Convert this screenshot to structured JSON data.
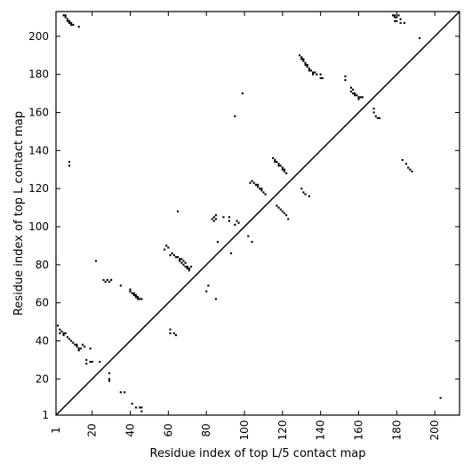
{
  "chart_data": {
    "type": "scatter",
    "title": "",
    "xlabel": "Residue index of top L/5 contact map",
    "ylabel": "Residue index of top L contact map",
    "xlim": [
      1,
      213
    ],
    "ylim": [
      1,
      213
    ],
    "xticks": [
      1,
      20,
      40,
      60,
      80,
      100,
      120,
      140,
      160,
      180,
      200
    ],
    "yticks": [
      1,
      20,
      40,
      60,
      80,
      100,
      120,
      140,
      160,
      180,
      200
    ],
    "xtick_labels": [
      "1",
      "20",
      "40",
      "60",
      "80",
      "100",
      "120",
      "140",
      "160",
      "180",
      "200"
    ],
    "ytick_labels": [
      "1",
      "20",
      "40",
      "60",
      "80",
      "100",
      "120",
      "140",
      "160",
      "180",
      "200"
    ],
    "diagonal": true,
    "marker_color": "#000000",
    "upper_triangle": [
      [
        5,
        211
      ],
      [
        6,
        211
      ],
      [
        6,
        210
      ],
      [
        7,
        209
      ],
      [
        7,
        208
      ],
      [
        8,
        208
      ],
      [
        8,
        207
      ],
      [
        9,
        207
      ],
      [
        9,
        206
      ],
      [
        10,
        206
      ],
      [
        13,
        205
      ],
      [
        8,
        134
      ],
      [
        8,
        132
      ],
      [
        58,
        88
      ],
      [
        59,
        90
      ],
      [
        60,
        89
      ],
      [
        61,
        85
      ],
      [
        62,
        86
      ],
      [
        63,
        85
      ],
      [
        64,
        84
      ],
      [
        65,
        84
      ],
      [
        66,
        83
      ],
      [
        66,
        82
      ],
      [
        67,
        83
      ],
      [
        67,
        81
      ],
      [
        68,
        82
      ],
      [
        68,
        80
      ],
      [
        69,
        81
      ],
      [
        69,
        79
      ],
      [
        70,
        79
      ],
      [
        70,
        78
      ],
      [
        71,
        78
      ],
      [
        71,
        77
      ],
      [
        72,
        79
      ],
      [
        80,
        66
      ],
      [
        81,
        69
      ],
      [
        85,
        62
      ],
      [
        65,
        108
      ],
      [
        83,
        104
      ],
      [
        84,
        105
      ],
      [
        84,
        103
      ],
      [
        85,
        106
      ],
      [
        85,
        104
      ],
      [
        86,
        92
      ],
      [
        89,
        105
      ],
      [
        92,
        103
      ],
      [
        92,
        105
      ],
      [
        93,
        86
      ],
      [
        95,
        101
      ],
      [
        96,
        103
      ],
      [
        97,
        102
      ],
      [
        95,
        158
      ],
      [
        99,
        170
      ],
      [
        102,
        95
      ],
      [
        104,
        92
      ],
      [
        103,
        123
      ],
      [
        104,
        124
      ],
      [
        105,
        123
      ],
      [
        106,
        122
      ],
      [
        107,
        122
      ],
      [
        107,
        121
      ],
      [
        108,
        120
      ],
      [
        109,
        120
      ],
      [
        109,
        119
      ],
      [
        110,
        118
      ],
      [
        111,
        117
      ],
      [
        115,
        136
      ],
      [
        116,
        135
      ],
      [
        116,
        134
      ],
      [
        117,
        134
      ],
      [
        118,
        133
      ],
      [
        118,
        132
      ],
      [
        119,
        132
      ],
      [
        120,
        131
      ],
      [
        120,
        130
      ],
      [
        121,
        130
      ],
      [
        121,
        129
      ],
      [
        122,
        128
      ],
      [
        117,
        111
      ],
      [
        118,
        110
      ],
      [
        119,
        109
      ],
      [
        120,
        108
      ],
      [
        121,
        107
      ],
      [
        122,
        106
      ],
      [
        123,
        104
      ],
      [
        129,
        190
      ],
      [
        130,
        189
      ],
      [
        130,
        188
      ],
      [
        131,
        188
      ],
      [
        131,
        187
      ],
      [
        132,
        186
      ],
      [
        132,
        185
      ],
      [
        133,
        185
      ],
      [
        133,
        184
      ],
      [
        134,
        183
      ],
      [
        134,
        182
      ],
      [
        135,
        182
      ],
      [
        136,
        181
      ],
      [
        136,
        180
      ],
      [
        137,
        181
      ],
      [
        138,
        180
      ],
      [
        140,
        178
      ],
      [
        141,
        178
      ],
      [
        140,
        180
      ],
      [
        130,
        120
      ],
      [
        131,
        118
      ],
      [
        132,
        117
      ],
      [
        134,
        116
      ],
      [
        153,
        179
      ],
      [
        153,
        177
      ],
      [
        156,
        173
      ],
      [
        156,
        171
      ],
      [
        157,
        172
      ],
      [
        157,
        170
      ],
      [
        158,
        170
      ],
      [
        158,
        169
      ],
      [
        159,
        169
      ],
      [
        160,
        168
      ],
      [
        160,
        167
      ],
      [
        161,
        168
      ],
      [
        162,
        168
      ],
      [
        168,
        162
      ],
      [
        168,
        160
      ],
      [
        169,
        158
      ],
      [
        170,
        157
      ],
      [
        171,
        157
      ],
      [
        178,
        211
      ],
      [
        179,
        211
      ],
      [
        179,
        210
      ],
      [
        179,
        208
      ],
      [
        180,
        210
      ],
      [
        180,
        208
      ],
      [
        181,
        211
      ],
      [
        182,
        209
      ],
      [
        182,
        207
      ],
      [
        184,
        207
      ],
      [
        192,
        199
      ],
      [
        183,
        135
      ],
      [
        185,
        133
      ],
      [
        186,
        131
      ],
      [
        187,
        130
      ],
      [
        188,
        129
      ]
    ],
    "lower_triangle": [
      [
        2,
        48
      ],
      [
        3,
        46
      ],
      [
        3,
        44
      ],
      [
        4,
        45
      ],
      [
        5,
        44
      ],
      [
        6,
        44
      ],
      [
        5,
        43
      ],
      [
        7,
        42
      ],
      [
        8,
        41
      ],
      [
        9,
        40
      ],
      [
        10,
        39
      ],
      [
        11,
        38
      ],
      [
        12,
        38
      ],
      [
        12,
        37
      ],
      [
        13,
        36
      ],
      [
        13,
        35
      ],
      [
        14,
        36
      ],
      [
        15,
        38
      ],
      [
        16,
        37
      ],
      [
        17,
        30
      ],
      [
        17,
        28
      ],
      [
        19,
        36
      ],
      [
        19,
        29
      ],
      [
        20,
        29
      ],
      [
        24,
        29
      ],
      [
        22,
        82
      ],
      [
        26,
        72
      ],
      [
        27,
        71
      ],
      [
        28,
        72
      ],
      [
        29,
        71
      ],
      [
        30,
        72
      ],
      [
        35,
        69
      ],
      [
        40,
        67
      ],
      [
        40,
        66
      ],
      [
        41,
        65
      ],
      [
        42,
        65
      ],
      [
        42,
        64
      ],
      [
        43,
        64
      ],
      [
        43,
        63
      ],
      [
        44,
        63
      ],
      [
        44,
        62
      ],
      [
        45,
        62
      ],
      [
        46,
        62
      ],
      [
        29,
        23
      ],
      [
        29,
        20
      ],
      [
        29,
        19
      ],
      [
        35,
        13
      ],
      [
        37,
        13
      ],
      [
        41,
        7
      ],
      [
        43,
        5
      ],
      [
        45,
        5
      ],
      [
        46,
        5
      ],
      [
        46,
        3
      ],
      [
        61,
        46
      ],
      [
        61,
        44
      ],
      [
        63,
        44
      ],
      [
        64,
        43
      ],
      [
        203,
        10
      ]
    ]
  }
}
